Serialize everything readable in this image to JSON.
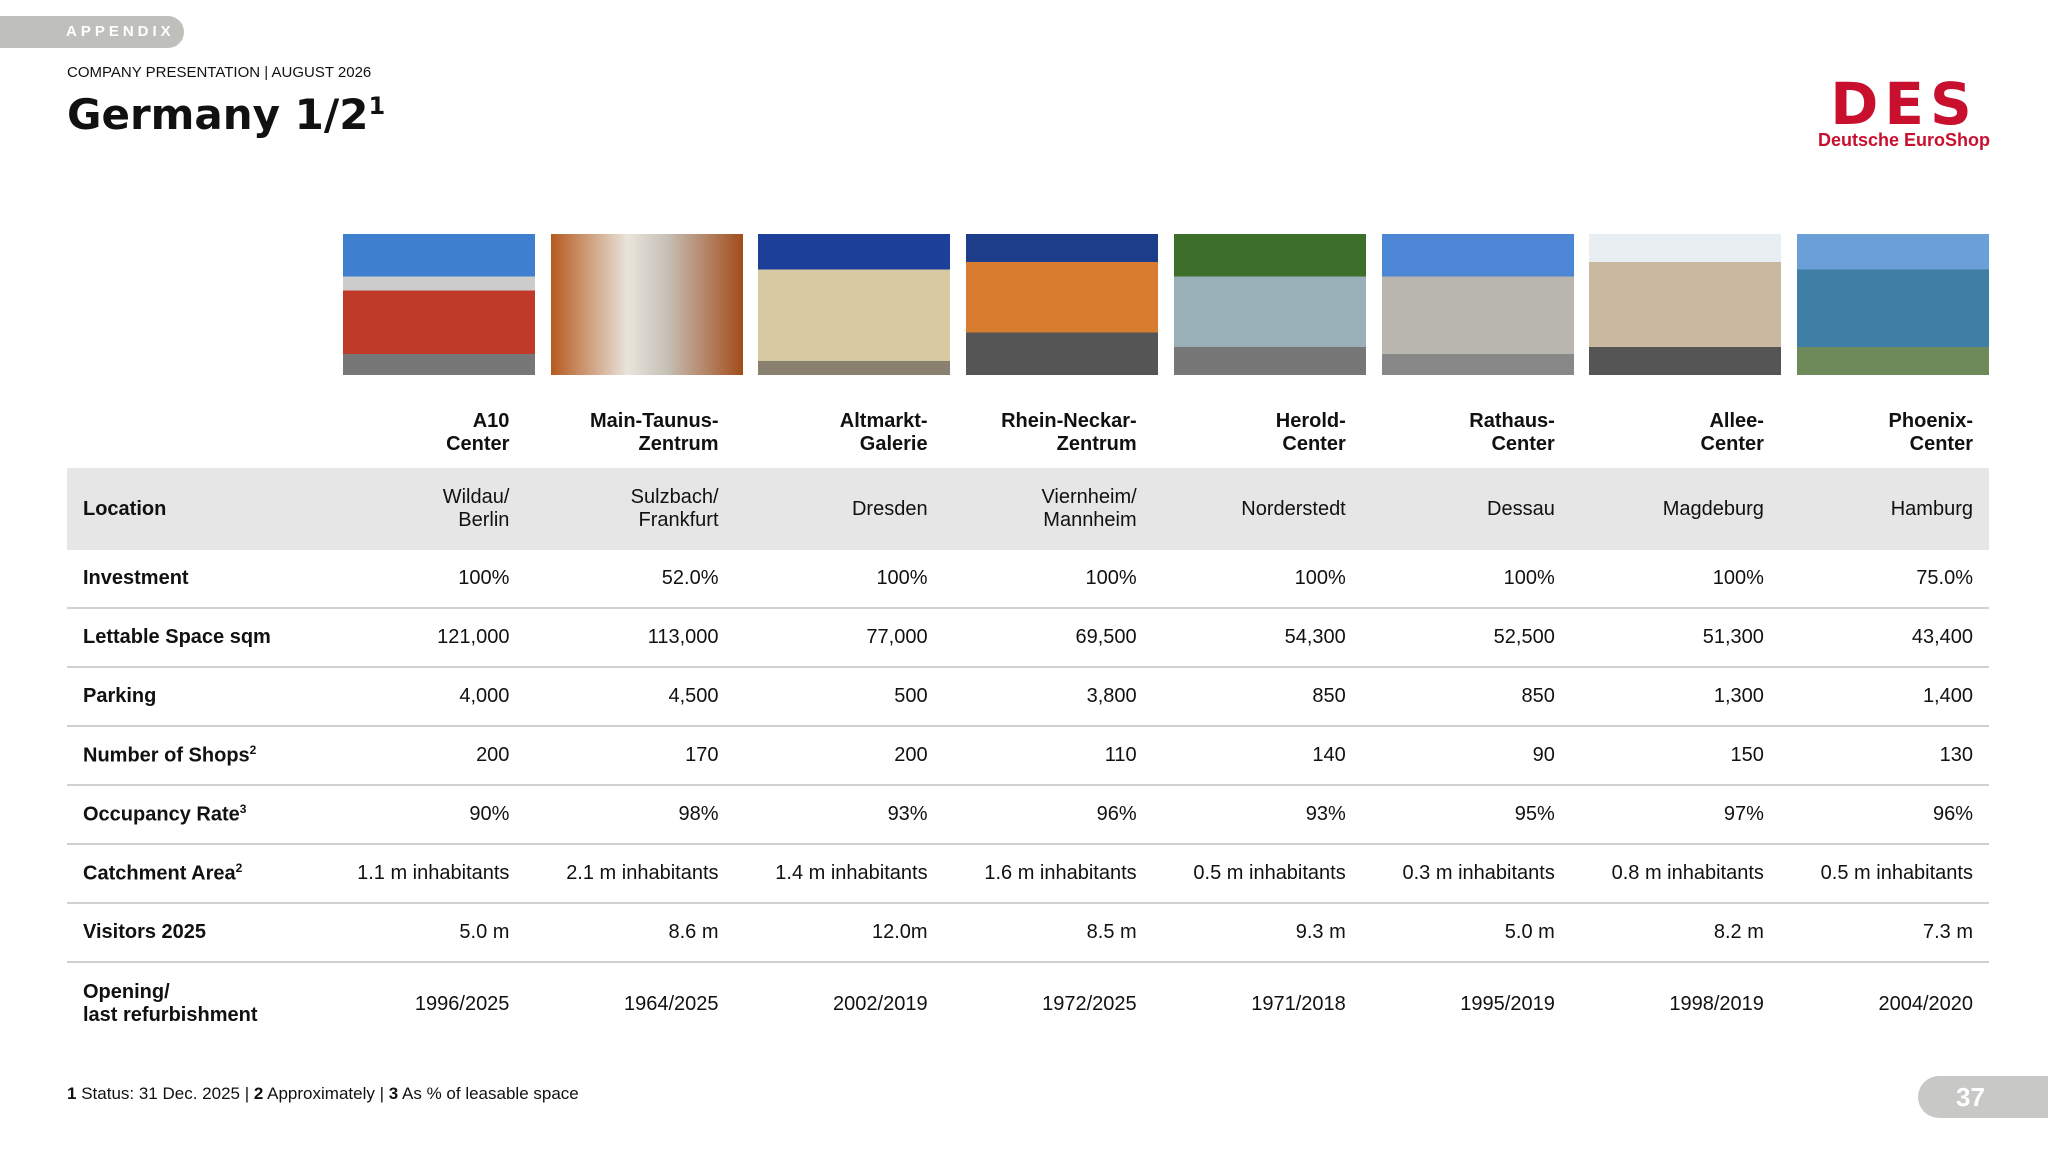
{
  "header": {
    "tag": "APPENDIX",
    "subtitle": "COMPANY PRESENTATION | AUGUST 2026",
    "title": "Germany 1/2",
    "title_sup": "1"
  },
  "logo": {
    "mark": "DES",
    "name": "Deutsche EuroShop"
  },
  "table": {
    "columns": [
      [
        "A10",
        "Center"
      ],
      [
        "Main-Taunus-",
        "Zentrum"
      ],
      [
        "Altmarkt-",
        "Galerie"
      ],
      [
        "Rhein-Neckar-",
        "Zentrum"
      ],
      [
        "Herold-",
        "Center"
      ],
      [
        "Rathaus-",
        "Center"
      ],
      [
        "Allee-",
        "Center"
      ],
      [
        "Phoenix-",
        "Center"
      ]
    ],
    "rows": [
      {
        "label": [
          "Location"
        ],
        "cells": [
          [
            "Wildau/",
            "Berlin"
          ],
          [
            "Sulzbach/",
            "Frankfurt"
          ],
          [
            "Dresden"
          ],
          [
            "Viernheim/",
            "Mannheim"
          ],
          [
            "Norderstedt"
          ],
          [
            "Dessau"
          ],
          [
            "Magdeburg"
          ],
          [
            "Hamburg"
          ]
        ]
      },
      {
        "label": [
          "Investment"
        ],
        "cells": [
          [
            "100%"
          ],
          [
            "52.0%"
          ],
          [
            "100%"
          ],
          [
            "100%"
          ],
          [
            "100%"
          ],
          [
            "100%"
          ],
          [
            "100%"
          ],
          [
            "75.0%"
          ]
        ]
      },
      {
        "label": [
          "Lettable Space sqm"
        ],
        "cells": [
          [
            "121,000"
          ],
          [
            "113,000"
          ],
          [
            "77,000"
          ],
          [
            "69,500"
          ],
          [
            "54,300"
          ],
          [
            "52,500"
          ],
          [
            "51,300"
          ],
          [
            "43,400"
          ]
        ]
      },
      {
        "label": [
          "Parking"
        ],
        "cells": [
          [
            "4,000"
          ],
          [
            "4,500"
          ],
          [
            "500"
          ],
          [
            "3,800"
          ],
          [
            "850"
          ],
          [
            "850"
          ],
          [
            "1,300"
          ],
          [
            "1,400"
          ]
        ]
      },
      {
        "label": [
          "Number of Shops"
        ],
        "sup": "2",
        "cells": [
          [
            "200"
          ],
          [
            "170"
          ],
          [
            "200"
          ],
          [
            "110"
          ],
          [
            "140"
          ],
          [
            "90"
          ],
          [
            "150"
          ],
          [
            "130"
          ]
        ]
      },
      {
        "label": [
          "Occupancy Rate"
        ],
        "sup": "3",
        "cells": [
          [
            "90%"
          ],
          [
            "98%"
          ],
          [
            "93%"
          ],
          [
            "96%"
          ],
          [
            "93%"
          ],
          [
            "95%"
          ],
          [
            "97%"
          ],
          [
            "96%"
          ]
        ]
      },
      {
        "label": [
          "Catchment Area"
        ],
        "sup": "2",
        "cells": [
          [
            "1.1 m inhabitants"
          ],
          [
            "2.1 m inhabitants"
          ],
          [
            "1.4 m inhabitants"
          ],
          [
            "1.6 m inhabitants"
          ],
          [
            "0.5 m inhabitants"
          ],
          [
            "0.3 m inhabitants"
          ],
          [
            "0.8 m inhabitants"
          ],
          [
            "0.5 m inhabitants"
          ]
        ]
      },
      {
        "label": [
          "Visitors 2025"
        ],
        "cells": [
          [
            "5.0 m"
          ],
          [
            "8.6 m"
          ],
          [
            "12.0m"
          ],
          [
            "8.5 m"
          ],
          [
            "9.3 m"
          ],
          [
            "5.0 m"
          ],
          [
            "8.2 m"
          ],
          [
            "7.3 m"
          ]
        ]
      },
      {
        "label": [
          "Opening/",
          "last refurbishment"
        ],
        "cells": [
          [
            "1996/2025"
          ],
          [
            "1964/2025"
          ],
          [
            "2002/2019"
          ],
          [
            "1972/2025"
          ],
          [
            "1971/2018"
          ],
          [
            "1995/2019"
          ],
          [
            "1998/2019"
          ],
          [
            "2004/2020"
          ]
        ]
      }
    ]
  },
  "footnotes": {
    "separator": "|",
    "items": [
      {
        "num": "1",
        "text": "Status: 31 Dec. 2025"
      },
      {
        "num": "2",
        "text": "Approximately"
      },
      {
        "num": "3",
        "text": "As % of leasable space"
      }
    ]
  },
  "page_number": "37"
}
